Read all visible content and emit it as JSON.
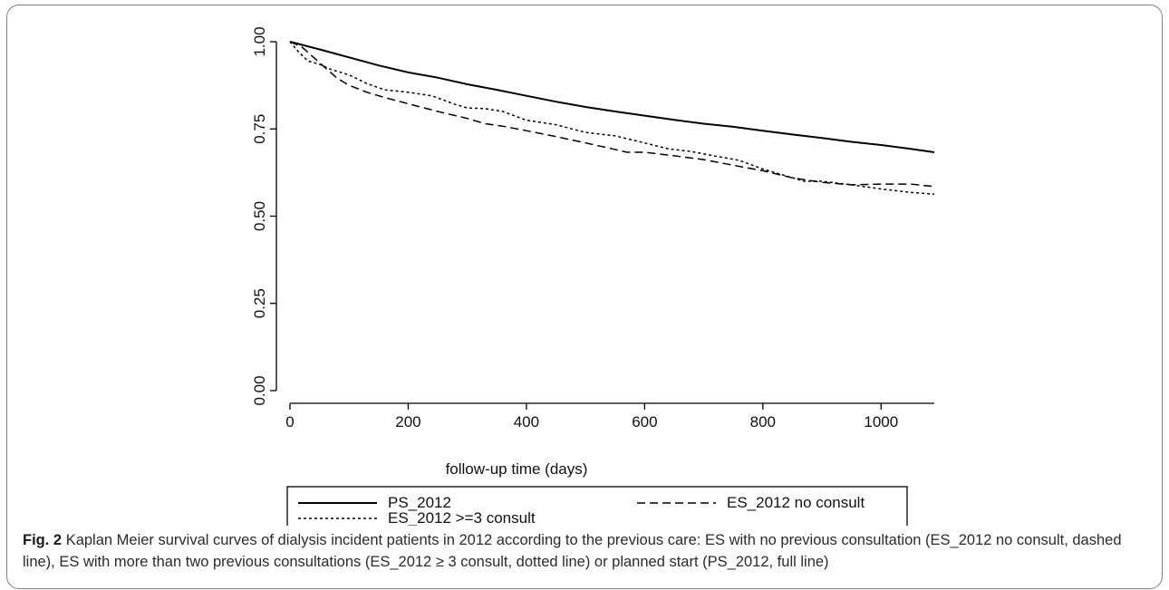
{
  "caption": {
    "label": "Fig. 2",
    "text": "Kaplan Meier survival curves of dialysis incident patients in 2012 according to the previous care: ES with no previous consultation (ES_2012 no consult, dashed line), ES with more than two previous consultations (ES_2012 ≥ 3 consult, dotted line) or planned start (PS_2012, full line)"
  },
  "chart_data": {
    "type": "line",
    "title": "",
    "xlabel": "follow-up time (days)",
    "ylabel": "",
    "xlim": [
      0,
      1090
    ],
    "ylim": [
      0,
      1
    ],
    "xticks": [
      0,
      200,
      400,
      600,
      800,
      1000
    ],
    "xtick_labels": [
      "0",
      "200",
      "400",
      "600",
      "800",
      "1000"
    ],
    "yticks": [
      0,
      0.25,
      0.5,
      0.75,
      1
    ],
    "ytick_labels": [
      "0.00",
      "0.25",
      "0.50",
      "0.75",
      "1.00"
    ],
    "grid": false,
    "legend_position": "bottom",
    "series": [
      {
        "name": "PS_2012",
        "style": "solid",
        "x": [
          0,
          50,
          100,
          150,
          200,
          250,
          300,
          350,
          400,
          450,
          500,
          550,
          600,
          650,
          700,
          750,
          800,
          850,
          900,
          950,
          1000,
          1050,
          1090
        ],
        "y": [
          1.0,
          0.978,
          0.955,
          0.932,
          0.912,
          0.897,
          0.878,
          0.862,
          0.845,
          0.828,
          0.813,
          0.8,
          0.788,
          0.776,
          0.765,
          0.756,
          0.745,
          0.734,
          0.724,
          0.713,
          0.704,
          0.693,
          0.683
        ]
      },
      {
        "name": "ES_2012 no consult",
        "style": "dashed",
        "x": [
          0,
          20,
          40,
          60,
          80,
          100,
          130,
          160,
          200,
          250,
          300,
          330,
          360,
          400,
          450,
          500,
          540,
          570,
          600,
          650,
          700,
          750,
          800,
          850,
          900,
          950,
          1000,
          1050,
          1090
        ],
        "y": [
          1.0,
          0.985,
          0.955,
          0.925,
          0.895,
          0.875,
          0.855,
          0.84,
          0.822,
          0.8,
          0.78,
          0.765,
          0.758,
          0.745,
          0.728,
          0.71,
          0.695,
          0.683,
          0.683,
          0.673,
          0.662,
          0.646,
          0.63,
          0.61,
          0.597,
          0.59,
          0.592,
          0.592,
          0.585
        ]
      },
      {
        "name": "ES_2012 >=3 consult",
        "style": "dotted",
        "x": [
          0,
          15,
          30,
          50,
          70,
          100,
          130,
          160,
          200,
          240,
          280,
          300,
          330,
          360,
          400,
          450,
          500,
          550,
          600,
          640,
          680,
          720,
          760,
          800,
          840,
          870,
          900,
          950,
          1000,
          1050,
          1090
        ],
        "y": [
          1.0,
          0.97,
          0.945,
          0.935,
          0.92,
          0.905,
          0.88,
          0.862,
          0.855,
          0.845,
          0.82,
          0.81,
          0.808,
          0.8,
          0.775,
          0.762,
          0.74,
          0.73,
          0.71,
          0.693,
          0.685,
          0.672,
          0.66,
          0.635,
          0.615,
          0.6,
          0.6,
          0.59,
          0.578,
          0.568,
          0.563
        ]
      }
    ]
  }
}
